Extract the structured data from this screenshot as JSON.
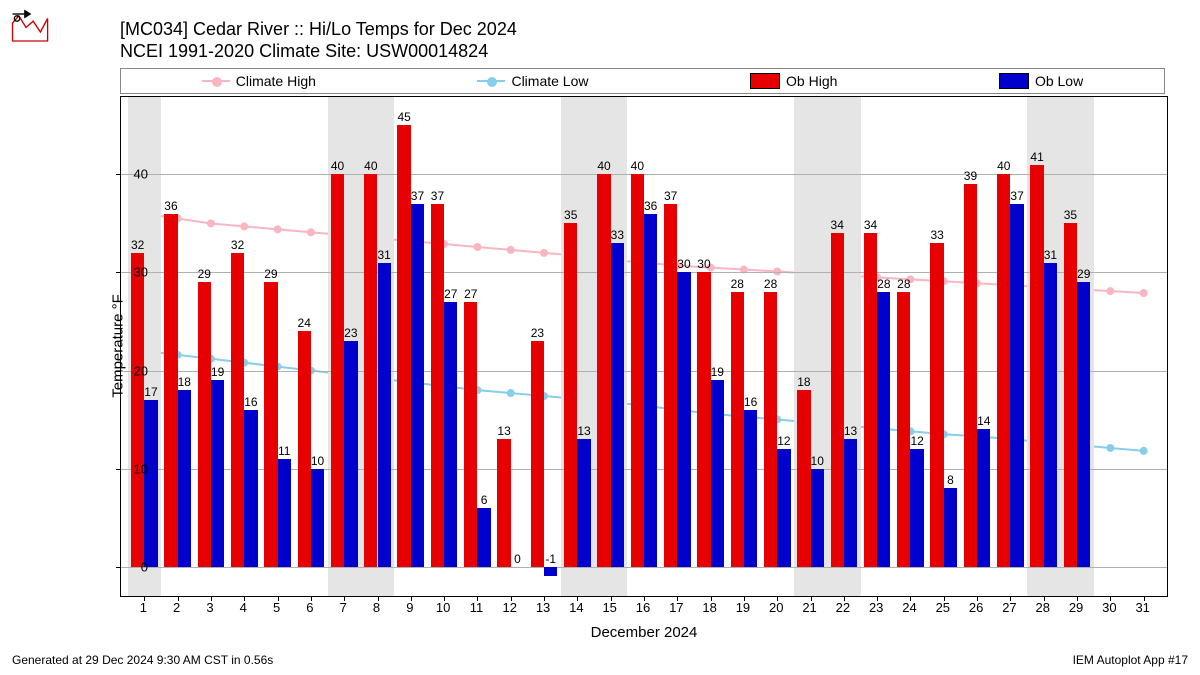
{
  "title_line1": "[MC034] Cedar River  :: Hi/Lo Temps for Dec 2024",
  "title_line2": "NCEI 1991-2020 Climate Site: USW00014824",
  "footer_left": "Generated at 29 Dec 2024 9:30 AM CST in 0.56s",
  "footer_right": "IEM Autoplot App #17",
  "legend": {
    "climate_high": "Climate High",
    "climate_low": "Climate Low",
    "ob_high": "Ob High",
    "ob_low": "Ob Low"
  },
  "colors": {
    "climate_high": "#f7b6c2",
    "climate_low": "#87ceeb",
    "ob_high": "#e60000",
    "ob_low": "#0000cc",
    "grid": "#b0b0b0",
    "weekend": "#e5e5e5",
    "bg": "#ffffff"
  },
  "axes": {
    "ylabel": "Temperature °F",
    "xlabel": "December 2024",
    "ymin": -3,
    "ymax": 48,
    "yticks": [
      0,
      10,
      20,
      30,
      40
    ],
    "xticks": [
      1,
      2,
      3,
      4,
      5,
      6,
      7,
      8,
      9,
      10,
      11,
      12,
      13,
      14,
      15,
      16,
      17,
      18,
      19,
      20,
      21,
      22,
      23,
      24,
      25,
      26,
      27,
      28,
      29,
      30,
      31
    ],
    "xmin": 0.3,
    "xmax": 31.7
  },
  "weekend_days": [
    1,
    7,
    8,
    14,
    15,
    21,
    22,
    28,
    29
  ],
  "chart": {
    "type": "bar+line",
    "bar_width": 0.4,
    "ob_high": {
      "1": 32,
      "2": 36,
      "3": 29,
      "4": 32,
      "5": 29,
      "6": 24,
      "7": 40,
      "8": 40,
      "9": 45,
      "10": 37,
      "11": 27,
      "12": 13,
      "13": 23,
      "14": 35,
      "15": 40,
      "16": 40,
      "17": 37,
      "18": 30,
      "19": 28,
      "20": 28,
      "21": 18,
      "22": 34,
      "23": 34,
      "24": 28,
      "25": 33,
      "26": 39,
      "27": 40,
      "28": 41,
      "29": 35
    },
    "ob_low": {
      "1": 17,
      "2": 18,
      "3": 19,
      "4": 16,
      "5": 11,
      "6": 10,
      "7": 23,
      "8": 31,
      "9": 37,
      "10": 27,
      "11": 6,
      "12": 0,
      "13": -1,
      "14": 13,
      "15": 33,
      "16": 36,
      "17": 30,
      "18": 19,
      "19": 16,
      "20": 12,
      "21": 10,
      "22": 13,
      "23": 28,
      "24": 12,
      "25": 8,
      "26": 14,
      "27": 37,
      "28": 31,
      "29": 29
    },
    "climate_high": {
      "1": 36,
      "2": 35.5,
      "3": 35,
      "4": 34.7,
      "5": 34.4,
      "6": 34.1,
      "7": 33.8,
      "8": 33.5,
      "9": 33.2,
      "10": 32.9,
      "11": 32.6,
      "12": 32.3,
      "13": 32,
      "14": 31.7,
      "15": 31.3,
      "16": 31,
      "17": 30.7,
      "18": 30.5,
      "19": 30.3,
      "20": 30.1,
      "21": 29.9,
      "22": 29.7,
      "23": 29.5,
      "24": 29.3,
      "25": 29.1,
      "26": 28.9,
      "27": 28.7,
      "28": 28.5,
      "29": 28.3,
      "30": 28.1,
      "31": 27.9
    },
    "climate_low": {
      "1": 22,
      "2": 21.6,
      "3": 21.2,
      "4": 20.8,
      "5": 20.4,
      "6": 20,
      "7": 19.6,
      "8": 19.2,
      "9": 18.8,
      "10": 18.4,
      "11": 18,
      "12": 17.7,
      "13": 17.4,
      "14": 17.1,
      "15": 16.8,
      "16": 16.4,
      "17": 16,
      "18": 15.6,
      "19": 15.3,
      "20": 15,
      "21": 14.7,
      "22": 14.4,
      "23": 14.1,
      "24": 13.8,
      "25": 13.5,
      "26": 13.3,
      "27": 13,
      "28": 12.7,
      "29": 12.4,
      "30": 12.1,
      "31": 11.8
    }
  }
}
